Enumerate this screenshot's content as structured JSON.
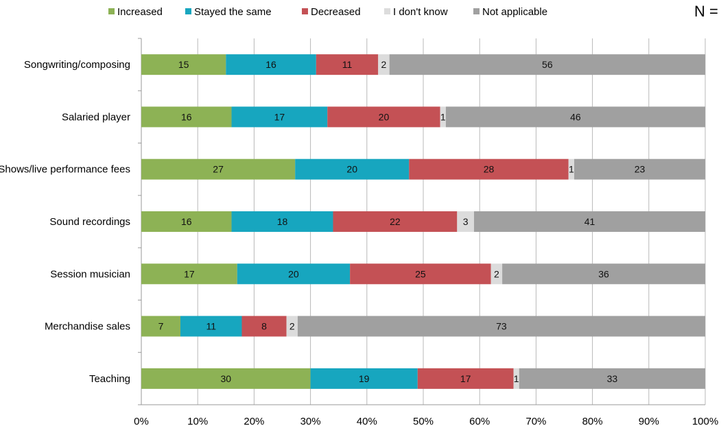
{
  "n_label": "N =",
  "chart_data": {
    "type": "bar",
    "orientation": "horizontal",
    "stacked": true,
    "categories": [
      "Songwriting/composing",
      "Salaried player",
      "Shows/live performance fees",
      "Sound recordings",
      "Session musician",
      "Merchandise sales",
      "Teaching"
    ],
    "series": [
      {
        "name": "Increased",
        "color": "#8db255",
        "values": [
          15,
          16,
          27,
          16,
          17,
          7,
          30
        ]
      },
      {
        "name": "Stayed the same",
        "color": "#17a6bf",
        "values": [
          16,
          17,
          20,
          18,
          20,
          11,
          19
        ]
      },
      {
        "name": "Decreased",
        "color": "#c45155",
        "values": [
          11,
          20,
          28,
          22,
          25,
          8,
          17
        ]
      },
      {
        "name": "I don't know",
        "color": "#dcdcdc",
        "values": [
          2,
          1,
          1,
          3,
          2,
          2,
          1
        ]
      },
      {
        "name": "Not applicable",
        "color": "#a0a0a0",
        "values": [
          56,
          46,
          23,
          41,
          36,
          73,
          33
        ]
      }
    ],
    "xlim": [
      0,
      100
    ],
    "x_ticks": [
      "0%",
      "10%",
      "20%",
      "30%",
      "40%",
      "50%",
      "60%",
      "70%",
      "80%",
      "90%",
      "100%"
    ],
    "grid": true,
    "legend": "top",
    "title": "",
    "xlabel": "",
    "ylabel": ""
  }
}
